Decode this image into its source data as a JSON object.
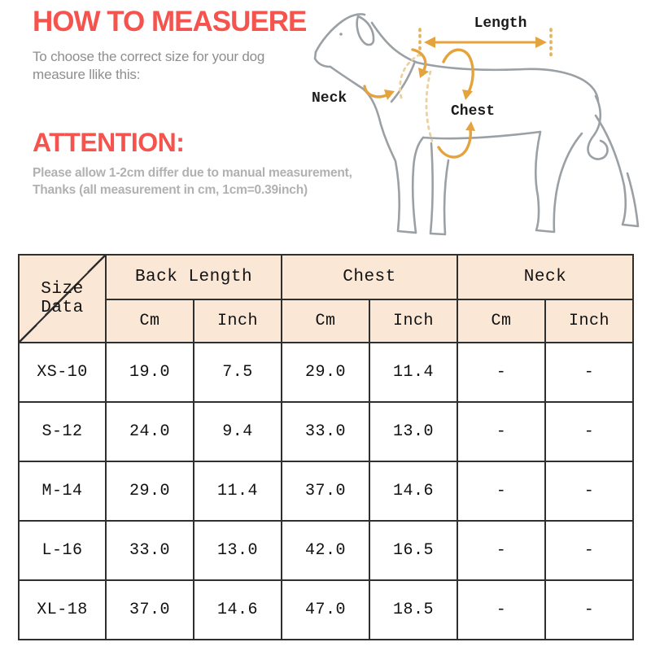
{
  "header": {
    "title": "HOW TO MEASUERE",
    "subtitle_line1": "To choose the correct size for your dog",
    "subtitle_line2": "measure llike this:"
  },
  "attention": {
    "heading": "ATTENTION:",
    "body_line1": "Please allow 1-2cm differ due to manual measurement,",
    "body_line2": "Thanks (all measurement in cm, 1cm=0.39inch)"
  },
  "diagram": {
    "length_label": "Length",
    "neck_label": "Neck",
    "chest_label": "Chest"
  },
  "size_table": {
    "corner_label": "Size Data",
    "column_groups": [
      {
        "label": "Back Length"
      },
      {
        "label": "Chest"
      },
      {
        "label": "Neck"
      }
    ],
    "unit_headers": [
      "Cm",
      "Inch",
      "Cm",
      "Inch",
      "Cm",
      "Inch"
    ],
    "rows": [
      {
        "size": "XS-10",
        "values": [
          "19.0",
          "7.5",
          "29.0",
          "11.4",
          "-",
          "-"
        ]
      },
      {
        "size": "S-12",
        "values": [
          "24.0",
          "9.4",
          "33.0",
          "13.0",
          "-",
          "-"
        ]
      },
      {
        "size": "M-14",
        "values": [
          "29.0",
          "11.4",
          "37.0",
          "14.6",
          "-",
          "-"
        ]
      },
      {
        "size": "L-16",
        "values": [
          "33.0",
          "13.0",
          "42.0",
          "16.5",
          "-",
          "-"
        ]
      },
      {
        "size": "XL-18",
        "values": [
          "37.0",
          "14.6",
          "47.0",
          "18.5",
          "-",
          "-"
        ]
      }
    ]
  },
  "colors": {
    "accent_red": "#f5534d",
    "subtitle_gray": "#8e8e8e",
    "note_gray": "#b1b1b1",
    "table_header_bg": "#fbe7d6",
    "table_border": "#2f2f2f",
    "dog_outline_gray": "#9aa0a4",
    "annotation_orange": "#e5a33d",
    "annotation_pale_orange": "#ecd0a0"
  }
}
